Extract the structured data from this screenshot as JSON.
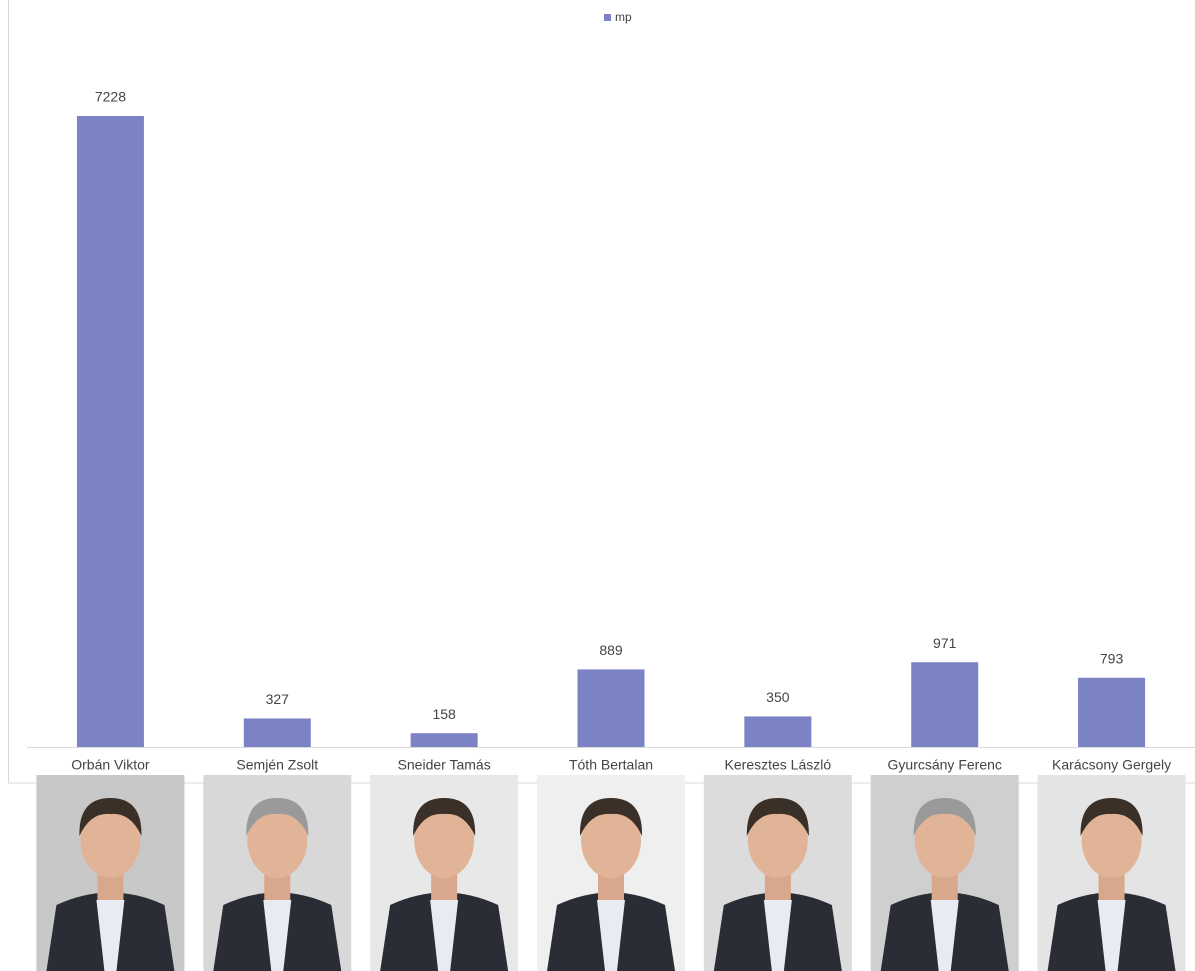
{
  "chart_data": {
    "type": "bar",
    "legend": "mp",
    "color": "#7b83c4",
    "categories": [
      "Orbán Viktor",
      "Semjén Zsolt",
      "Sneider Tamás",
      "Tóth Bertalan",
      "Keresztes László",
      "Gyurcsány Ferenc",
      "Karácsony Gergely"
    ],
    "values": [
      7228,
      327,
      158,
      889,
      350,
      971,
      793
    ]
  }
}
